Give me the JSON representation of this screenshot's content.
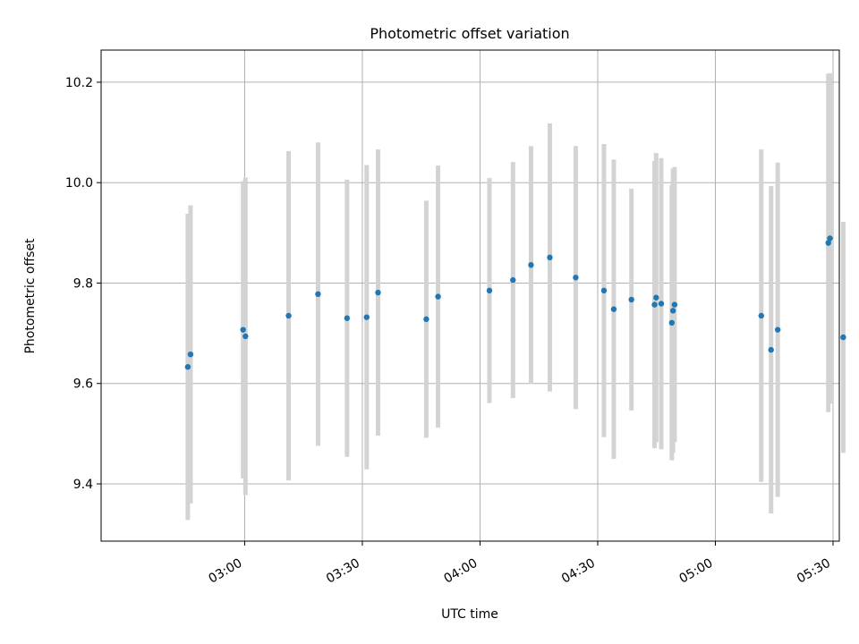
{
  "chart_data": {
    "type": "scatter",
    "title": "Photometric offset variation",
    "xlabel": "UTC time",
    "ylabel": "Photometric offset",
    "x_unit": "minutes since 00:00 UTC",
    "xlim": [
      143.4,
      331.6
    ],
    "ylim": [
      9.286,
      10.264
    ],
    "x_ticks": [
      {
        "value": 180,
        "label": "03:00"
      },
      {
        "value": 210,
        "label": "03:30"
      },
      {
        "value": 240,
        "label": "04:00"
      },
      {
        "value": 270,
        "label": "04:30"
      },
      {
        "value": 300,
        "label": "05:00"
      },
      {
        "value": 330,
        "label": "05:30"
      }
    ],
    "y_ticks": [
      {
        "value": 9.4,
        "label": "9.4"
      },
      {
        "value": 9.6,
        "label": "9.6"
      },
      {
        "value": 9.8,
        "label": "9.8"
      },
      {
        "value": 10.0,
        "label": "10.0"
      },
      {
        "value": 10.2,
        "label": "10.2"
      }
    ],
    "grid": true,
    "colors": {
      "point": "#1f77b4",
      "errorbar": "#d3d3d3",
      "grid": "#b0b0b0"
    },
    "series": [
      {
        "name": "offset",
        "points": [
          {
            "x": 165.5,
            "y": 9.633,
            "err": 0.305
          },
          {
            "x": 166.2,
            "y": 9.658,
            "err": 0.297
          },
          {
            "x": 179.6,
            "y": 9.707,
            "err": 0.296
          },
          {
            "x": 180.2,
            "y": 9.694,
            "err": 0.316
          },
          {
            "x": 191.2,
            "y": 9.735,
            "err": 0.328
          },
          {
            "x": 198.7,
            "y": 9.778,
            "err": 0.302
          },
          {
            "x": 206.1,
            "y": 9.73,
            "err": 0.276
          },
          {
            "x": 211.1,
            "y": 9.732,
            "err": 0.303
          },
          {
            "x": 214.0,
            "y": 9.781,
            "err": 0.285
          },
          {
            "x": 226.3,
            "y": 9.728,
            "err": 0.236
          },
          {
            "x": 229.3,
            "y": 9.773,
            "err": 0.261
          },
          {
            "x": 242.4,
            "y": 9.785,
            "err": 0.224
          },
          {
            "x": 248.4,
            "y": 9.806,
            "err": 0.235
          },
          {
            "x": 253.0,
            "y": 9.836,
            "err": 0.237
          },
          {
            "x": 257.8,
            "y": 9.851,
            "err": 0.267
          },
          {
            "x": 264.4,
            "y": 9.811,
            "err": 0.262
          },
          {
            "x": 271.6,
            "y": 9.785,
            "err": 0.292
          },
          {
            "x": 274.1,
            "y": 9.748,
            "err": 0.298
          },
          {
            "x": 278.6,
            "y": 9.767,
            "err": 0.221
          },
          {
            "x": 284.5,
            "y": 9.757,
            "err": 0.286
          },
          {
            "x": 284.9,
            "y": 9.771,
            "err": 0.288
          },
          {
            "x": 286.2,
            "y": 9.759,
            "err": 0.29
          },
          {
            "x": 288.9,
            "y": 9.721,
            "err": 0.274
          },
          {
            "x": 289.2,
            "y": 9.745,
            "err": 0.283
          },
          {
            "x": 289.6,
            "y": 9.757,
            "err": 0.274
          },
          {
            "x": 311.7,
            "y": 9.735,
            "err": 0.331
          },
          {
            "x": 314.2,
            "y": 9.667,
            "err": 0.326
          },
          {
            "x": 315.9,
            "y": 9.707,
            "err": 0.333
          },
          {
            "x": 328.8,
            "y": 9.88,
            "err": 0.337
          },
          {
            "x": 329.2,
            "y": 9.889,
            "err": 0.329
          },
          {
            "x": 332.6,
            "y": 9.692,
            "err": 0.23
          }
        ]
      }
    ]
  }
}
